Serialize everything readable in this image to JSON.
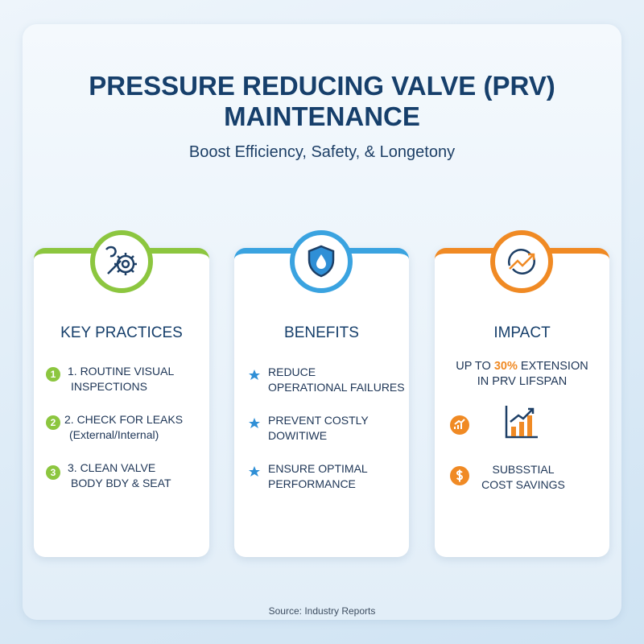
{
  "header": {
    "title": [
      "PRESSURE REDUCING VALVE (PRV)",
      "MAINTENANCE"
    ],
    "subtitle": "Boost Efficiency, Safety, & Longetony"
  },
  "cards": [
    {
      "title": "KEY PRACTICES",
      "items": [
        {
          "marker": "1",
          "lines": [
            "1. ROUTINE VISUAL",
            "INSPECTIONS"
          ]
        },
        {
          "marker": "2",
          "lines": [
            "2. CHECK FOR LEAKS",
            "(External/Internal)"
          ]
        },
        {
          "marker": "3",
          "lines": [
            "3. CLEAN VALVE",
            "BODY BDY & SEAT"
          ]
        }
      ]
    },
    {
      "title": "BENEFITS",
      "items": [
        {
          "lines": [
            "REDUCE",
            "OPERATIONAL FAILURES"
          ]
        },
        {
          "lines": [
            "PREVENT COSTLY",
            "DOWITIWE"
          ]
        },
        {
          "lines": [
            "ENSURE OPTIMAL",
            "PERFORMANCE"
          ]
        }
      ]
    },
    {
      "title": "IMPACT",
      "highlight": [
        "UP TO",
        "30%",
        "EXTENSION",
        "IN PRV LIFSPAN"
      ],
      "items": [
        {
          "lines": [
            "SUBSSTIAL",
            "COST SAVINGS"
          ]
        }
      ]
    }
  ],
  "footer": {
    "source": "Source: Industry Reports"
  }
}
